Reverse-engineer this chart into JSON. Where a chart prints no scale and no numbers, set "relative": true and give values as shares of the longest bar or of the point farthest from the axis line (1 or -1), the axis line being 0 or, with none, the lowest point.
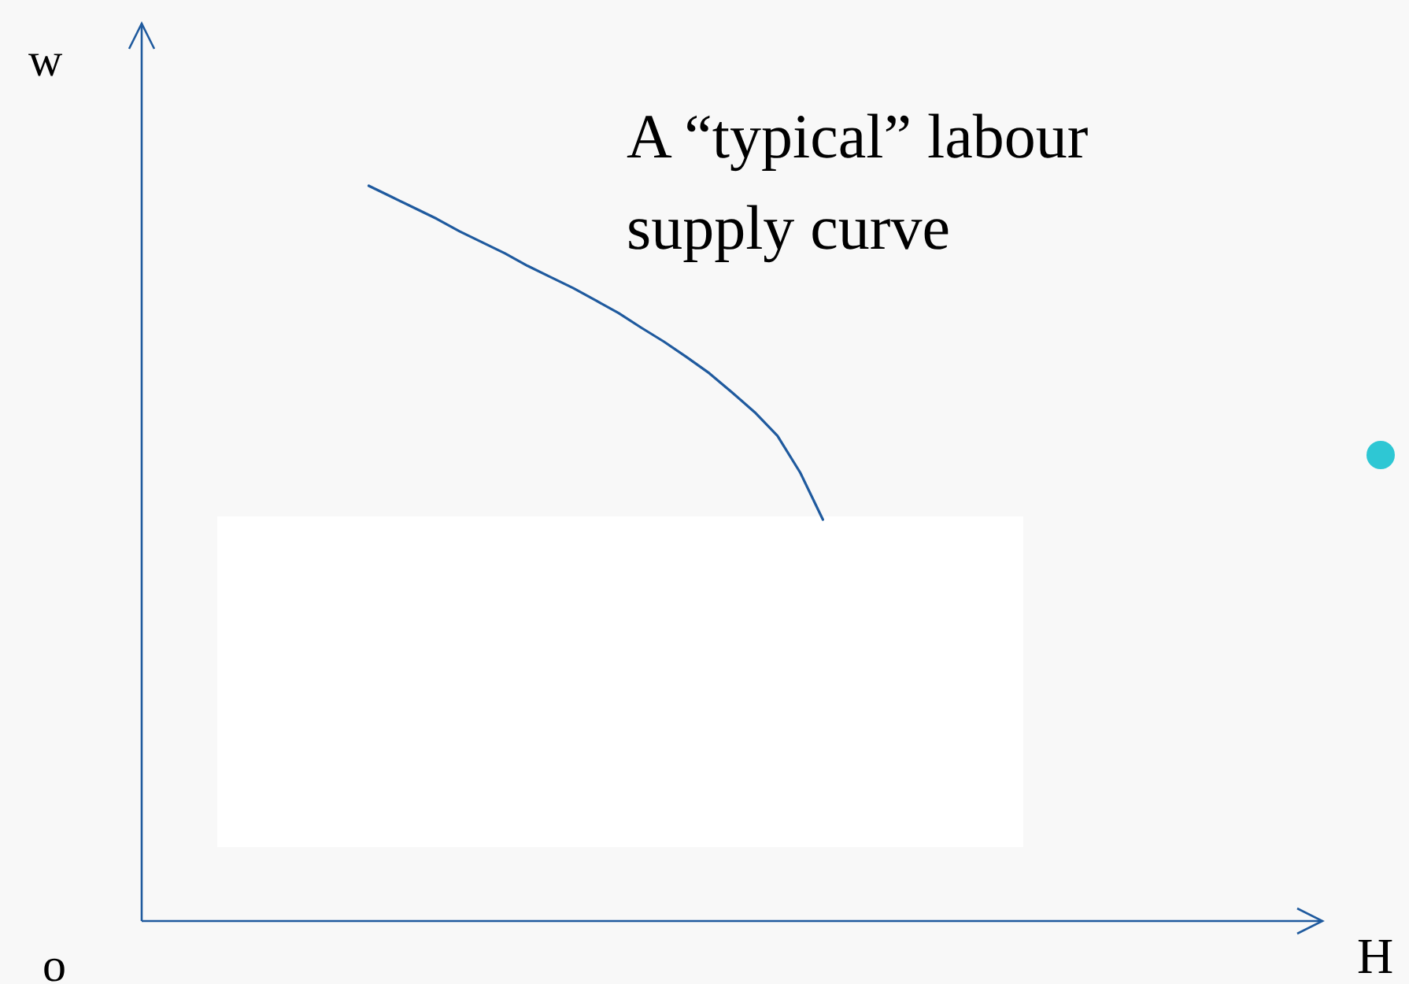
{
  "chart_data": {
    "type": "line",
    "relative": true,
    "xlabel": "H",
    "ylabel": "w",
    "marker": "none",
    "line_style": "solid",
    "annotations": [
      "A “typical” labour supply curve",
      "o"
    ],
    "categories": [
      null,
      null,
      null,
      null,
      null,
      null,
      null,
      null,
      null,
      null,
      null,
      null,
      null,
      null,
      null,
      null,
      null,
      null,
      null,
      null,
      null,
      null,
      null,
      null,
      null,
      null,
      null,
      null,
      null,
      null,
      null,
      null,
      null,
      null,
      null,
      null,
      null,
      null,
      null,
      null,
      null,
      null,
      null,
      null,
      null,
      null,
      null,
      null,
      null,
      null,
      null,
      null,
      null
    ],
    "series": [
      {
        "color": "#1f5a9e",
        "values": [
          null,
          null,
          null,
          null,
          null,
          null,
          null,
          null,
          null,
          null,
          1,
          0.985,
          0.97,
          0.955,
          0.938,
          0.923,
          0.908,
          0.891,
          0.876,
          0.861,
          0.844,
          0.827,
          0.807,
          0.788,
          0.767,
          0.745,
          0.719,
          0.692,
          0.66,
          0.61,
          0.546,
          null,
          null,
          null,
          null,
          null,
          null,
          null,
          null,
          null,
          null,
          null,
          null,
          null,
          null,
          null,
          null,
          null,
          null,
          null,
          null,
          null,
          null
        ]
      }
    ]
  }
}
